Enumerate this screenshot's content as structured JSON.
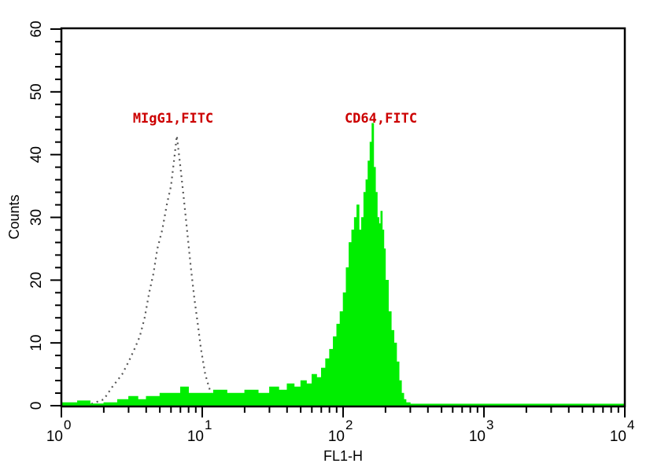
{
  "chart_data": {
    "type": "histogram",
    "title": "",
    "xlabel": "FL1-H",
    "ylabel": "Counts",
    "x_scale": "log",
    "xlim": [
      1,
      10000
    ],
    "ylim": [
      0,
      60
    ],
    "x_ticks": [
      {
        "base": "10",
        "exp": "0",
        "value": 1
      },
      {
        "base": "10",
        "exp": "1",
        "value": 10
      },
      {
        "base": "10",
        "exp": "2",
        "value": 100
      },
      {
        "base": "10",
        "exp": "3",
        "value": 1000
      },
      {
        "base": "10",
        "exp": "4",
        "value": 10000
      }
    ],
    "y_ticks": [
      "0",
      "10",
      "20",
      "30",
      "40",
      "50",
      "60"
    ],
    "y_tick_values": [
      0,
      10,
      20,
      30,
      40,
      50,
      60
    ],
    "grid": false,
    "legend": null,
    "annotations": [
      {
        "text": "MIgG1,FITC",
        "color": "#cc0000",
        "near_x": 6,
        "near_y": 46
      },
      {
        "text": "CD64,FITC",
        "color": "#cc0000",
        "near_x": 150,
        "near_y": 46
      }
    ],
    "series": [
      {
        "name": "MIgG1,FITC",
        "style": "dotted outline",
        "color": "#555555",
        "peak_x": 6.5,
        "peak_count": 43,
        "points": [
          {
            "x": 1.5,
            "y": 0
          },
          {
            "x": 2.0,
            "y": 1
          },
          {
            "x": 2.3,
            "y": 3
          },
          {
            "x": 2.7,
            "y": 5
          },
          {
            "x": 3.0,
            "y": 7
          },
          {
            "x": 3.3,
            "y": 9
          },
          {
            "x": 3.6,
            "y": 11
          },
          {
            "x": 3.9,
            "y": 14
          },
          {
            "x": 4.2,
            "y": 18
          },
          {
            "x": 4.5,
            "y": 21
          },
          {
            "x": 4.8,
            "y": 25
          },
          {
            "x": 5.2,
            "y": 28
          },
          {
            "x": 5.6,
            "y": 32
          },
          {
            "x": 6.0,
            "y": 35
          },
          {
            "x": 6.3,
            "y": 39
          },
          {
            "x": 6.6,
            "y": 43
          },
          {
            "x": 7.0,
            "y": 38
          },
          {
            "x": 7.4,
            "y": 33
          },
          {
            "x": 7.8,
            "y": 28
          },
          {
            "x": 8.3,
            "y": 22
          },
          {
            "x": 8.8,
            "y": 17
          },
          {
            "x": 9.3,
            "y": 13
          },
          {
            "x": 9.8,
            "y": 9
          },
          {
            "x": 10.5,
            "y": 5
          },
          {
            "x": 11.5,
            "y": 2
          },
          {
            "x": 13,
            "y": 0
          }
        ]
      },
      {
        "name": "CD64,FITC",
        "style": "filled",
        "color": "#00ee00",
        "peak_x": 160,
        "peak_count": 45,
        "points": [
          {
            "x": 1.0,
            "y": 0.5
          },
          {
            "x": 1.3,
            "y": 0.8
          },
          {
            "x": 1.6,
            "y": 0.3
          },
          {
            "x": 2.0,
            "y": 0.5
          },
          {
            "x": 2.5,
            "y": 1.0
          },
          {
            "x": 3.0,
            "y": 1.5
          },
          {
            "x": 3.5,
            "y": 1.0
          },
          {
            "x": 4.0,
            "y": 1.5
          },
          {
            "x": 5.0,
            "y": 2.0
          },
          {
            "x": 6.0,
            "y": 2.0
          },
          {
            "x": 7.0,
            "y": 3.0
          },
          {
            "x": 8.0,
            "y": 2.0
          },
          {
            "x": 10,
            "y": 2.0
          },
          {
            "x": 12,
            "y": 2.5
          },
          {
            "x": 15,
            "y": 2.0
          },
          {
            "x": 20,
            "y": 2.5
          },
          {
            "x": 25,
            "y": 2.0
          },
          {
            "x": 30,
            "y": 3.0
          },
          {
            "x": 35,
            "y": 2.5
          },
          {
            "x": 40,
            "y": 3.5
          },
          {
            "x": 45,
            "y": 3.0
          },
          {
            "x": 50,
            "y": 4.0
          },
          {
            "x": 55,
            "y": 3.5
          },
          {
            "x": 60,
            "y": 5.0
          },
          {
            "x": 65,
            "y": 4.5
          },
          {
            "x": 70,
            "y": 6.0
          },
          {
            "x": 75,
            "y": 7.5
          },
          {
            "x": 80,
            "y": 9.0
          },
          {
            "x": 85,
            "y": 11
          },
          {
            "x": 90,
            "y": 13
          },
          {
            "x": 95,
            "y": 15
          },
          {
            "x": 100,
            "y": 18
          },
          {
            "x": 105,
            "y": 22
          },
          {
            "x": 110,
            "y": 26
          },
          {
            "x": 115,
            "y": 28
          },
          {
            "x": 120,
            "y": 30
          },
          {
            "x": 125,
            "y": 32
          },
          {
            "x": 130,
            "y": 28
          },
          {
            "x": 135,
            "y": 30
          },
          {
            "x": 140,
            "y": 34
          },
          {
            "x": 145,
            "y": 36
          },
          {
            "x": 150,
            "y": 39
          },
          {
            "x": 155,
            "y": 42
          },
          {
            "x": 160,
            "y": 45
          },
          {
            "x": 165,
            "y": 38
          },
          {
            "x": 170,
            "y": 34
          },
          {
            "x": 175,
            "y": 30
          },
          {
            "x": 180,
            "y": 29
          },
          {
            "x": 185,
            "y": 31
          },
          {
            "x": 190,
            "y": 28
          },
          {
            "x": 195,
            "y": 25
          },
          {
            "x": 200,
            "y": 20
          },
          {
            "x": 210,
            "y": 15
          },
          {
            "x": 220,
            "y": 12
          },
          {
            "x": 230,
            "y": 10
          },
          {
            "x": 240,
            "y": 7
          },
          {
            "x": 250,
            "y": 4
          },
          {
            "x": 260,
            "y": 2
          },
          {
            "x": 270,
            "y": 1
          },
          {
            "x": 280,
            "y": 0.5
          },
          {
            "x": 300,
            "y": 0
          },
          {
            "x": 10000,
            "y": 0
          }
        ]
      }
    ]
  }
}
